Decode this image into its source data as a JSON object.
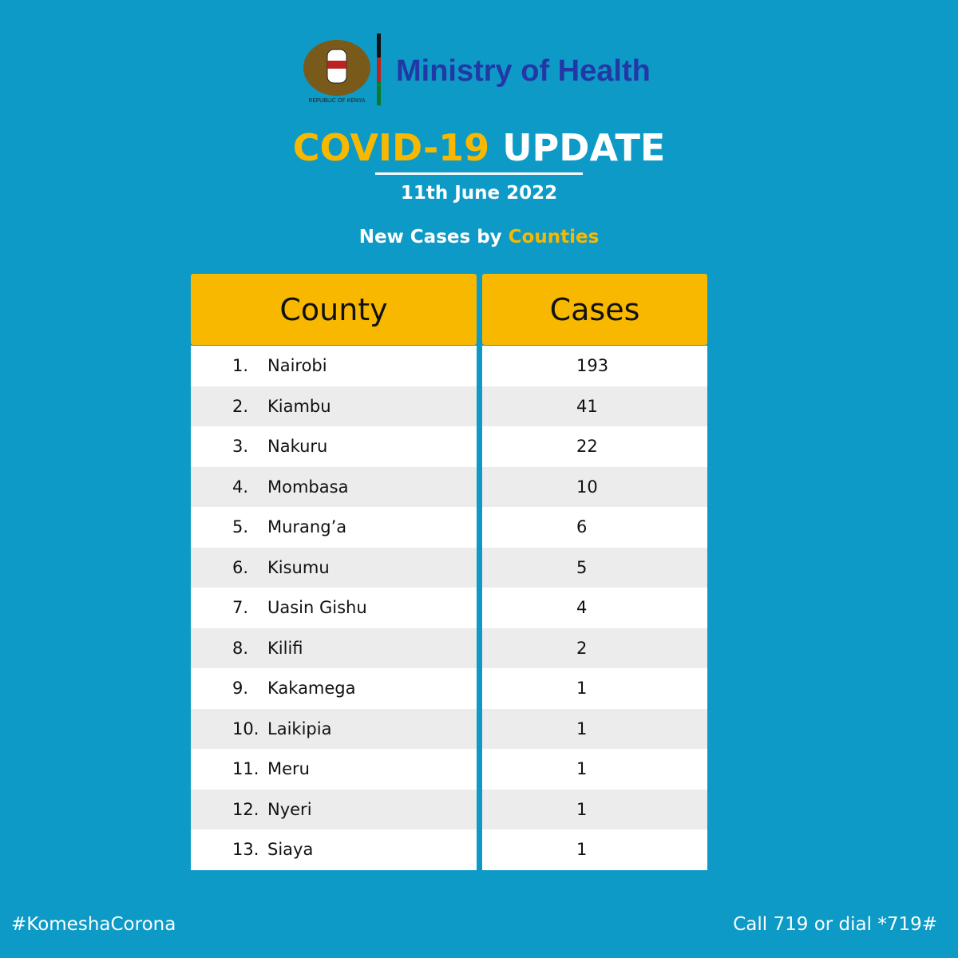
{
  "header": {
    "emblem_caption": "REPUBLIC OF KENYA",
    "ministry": "Ministry of Health",
    "title_highlight": "COVID-19",
    "title_rest": "UPDATE",
    "date": "11th June 2022",
    "subtitle": "New Cases by",
    "subtitle_highlight": "Counties"
  },
  "table": {
    "columns": [
      "County",
      "Cases"
    ],
    "rows": [
      [
        "1.",
        "Nairobi",
        193
      ],
      [
        "2.",
        "Kiambu",
        41
      ],
      [
        "3.",
        "Nakuru",
        22
      ],
      [
        "4.",
        "Mombasa",
        10
      ],
      [
        "5.",
        "Murang’a",
        6
      ],
      [
        "6.",
        "Kisumu",
        5
      ],
      [
        "7.",
        "Uasin Gishu",
        4
      ],
      [
        "8.",
        "Kilifi",
        2
      ],
      [
        "9.",
        "Kakamega",
        1
      ],
      [
        "10.",
        "Laikipia",
        1
      ],
      [
        "11.",
        "Meru",
        1
      ],
      [
        "12.",
        "Nyeri",
        1
      ],
      [
        "13.",
        "Siaya",
        1
      ]
    ]
  },
  "footer": {
    "hashtag": "#KomeshaCorona",
    "hotline": "Call 719 or dial *719#"
  }
}
